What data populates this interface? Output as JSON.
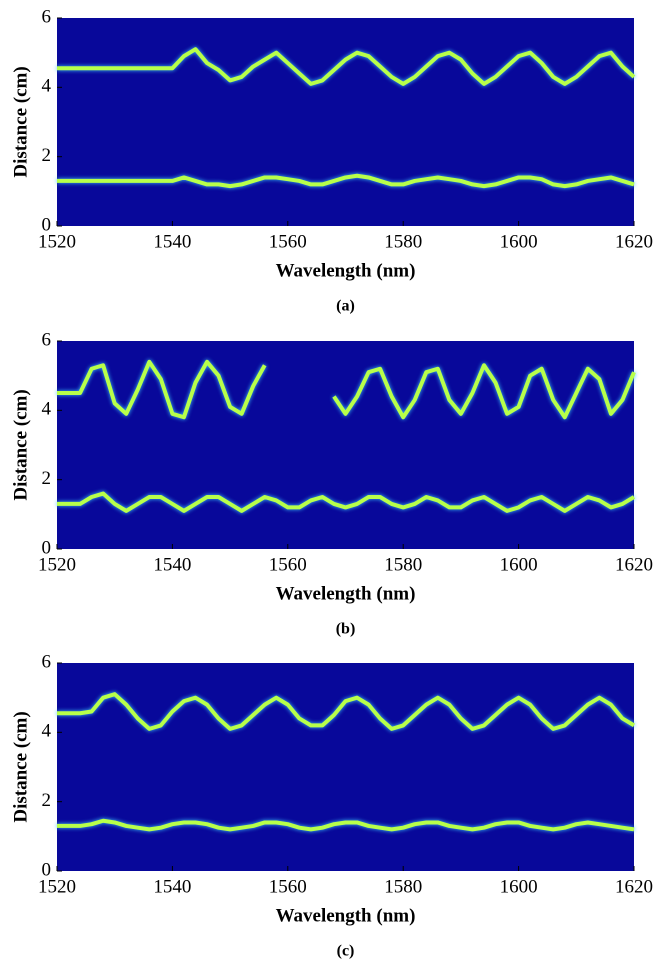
{
  "chart_data": [
    {
      "type": "line",
      "caption": "(a)",
      "xlabel": "Wavelength (nm)",
      "ylabel": "Distance (cm)",
      "xlim": [
        1520,
        1620
      ],
      "ylim": [
        0,
        6
      ],
      "xticks": [
        1520,
        1540,
        1560,
        1580,
        1600,
        1620
      ],
      "yticks": [
        0,
        2,
        4,
        6
      ],
      "background": "#08089a",
      "x": [
        1520,
        1522,
        1524,
        1526,
        1528,
        1530,
        1532,
        1534,
        1536,
        1538,
        1540,
        1542,
        1544,
        1546,
        1548,
        1550,
        1552,
        1554,
        1556,
        1558,
        1560,
        1562,
        1564,
        1566,
        1568,
        1570,
        1572,
        1574,
        1576,
        1578,
        1580,
        1582,
        1584,
        1586,
        1588,
        1590,
        1592,
        1594,
        1596,
        1598,
        1600,
        1602,
        1604,
        1606,
        1608,
        1610,
        1612,
        1614,
        1616,
        1618,
        1620
      ],
      "series": [
        {
          "color": "#b8ff4a",
          "values": [
            4.55,
            4.55,
            4.55,
            4.55,
            4.55,
            4.55,
            4.55,
            4.55,
            4.55,
            4.55,
            4.55,
            4.9,
            5.1,
            4.7,
            4.5,
            4.2,
            4.3,
            4.6,
            4.8,
            5.0,
            4.7,
            4.4,
            4.1,
            4.2,
            4.5,
            4.8,
            5.0,
            4.9,
            4.6,
            4.3,
            4.1,
            4.3,
            4.6,
            4.9,
            5.0,
            4.8,
            4.4,
            4.1,
            4.3,
            4.6,
            4.9,
            5.0,
            4.7,
            4.3,
            4.1,
            4.3,
            4.6,
            4.9,
            5.0,
            4.6,
            4.3
          ]
        },
        {
          "color": "#b8ff4a",
          "values": [
            1.3,
            1.3,
            1.3,
            1.3,
            1.3,
            1.3,
            1.3,
            1.3,
            1.3,
            1.3,
            1.3,
            1.4,
            1.3,
            1.2,
            1.2,
            1.15,
            1.2,
            1.3,
            1.4,
            1.4,
            1.35,
            1.3,
            1.2,
            1.2,
            1.3,
            1.4,
            1.45,
            1.4,
            1.3,
            1.2,
            1.2,
            1.3,
            1.35,
            1.4,
            1.35,
            1.3,
            1.2,
            1.15,
            1.2,
            1.3,
            1.4,
            1.4,
            1.35,
            1.2,
            1.15,
            1.2,
            1.3,
            1.35,
            1.4,
            1.3,
            1.2
          ]
        }
      ]
    },
    {
      "type": "line",
      "caption": "(b)",
      "xlabel": "Wavelength (nm)",
      "ylabel": "Distance (cm)",
      "xlim": [
        1520,
        1620
      ],
      "ylim": [
        0,
        6
      ],
      "xticks": [
        1520,
        1540,
        1560,
        1580,
        1600,
        1620
      ],
      "yticks": [
        0,
        2,
        4,
        6
      ],
      "background": "#08089a",
      "x": [
        1520,
        1522,
        1524,
        1526,
        1528,
        1530,
        1532,
        1534,
        1536,
        1538,
        1540,
        1542,
        1544,
        1546,
        1548,
        1550,
        1552,
        1554,
        1556,
        1558,
        1560,
        1562,
        1564,
        1566,
        1568,
        1570,
        1572,
        1574,
        1576,
        1578,
        1580,
        1582,
        1584,
        1586,
        1588,
        1590,
        1592,
        1594,
        1596,
        1598,
        1600,
        1602,
        1604,
        1606,
        1608,
        1610,
        1612,
        1614,
        1616,
        1618,
        1620
      ],
      "series": [
        {
          "color": "#b8ff4a",
          "values": [
            4.5,
            4.5,
            4.5,
            5.2,
            5.3,
            4.2,
            3.9,
            4.6,
            5.4,
            4.9,
            3.9,
            3.8,
            4.8,
            5.4,
            5.0,
            4.1,
            3.9,
            4.7,
            5.3,
            null,
            null,
            null,
            null,
            null,
            4.4,
            3.9,
            4.4,
            5.1,
            5.2,
            4.4,
            3.8,
            4.3,
            5.1,
            5.2,
            4.3,
            3.9,
            4.5,
            5.3,
            4.8,
            3.9,
            4.1,
            5.0,
            5.2,
            4.3,
            3.8,
            4.5,
            5.2,
            4.9,
            3.9,
            4.3,
            5.1
          ]
        },
        {
          "color": "#b8ff4a",
          "values": [
            1.3,
            1.3,
            1.3,
            1.5,
            1.6,
            1.3,
            1.1,
            1.3,
            1.5,
            1.5,
            1.3,
            1.1,
            1.3,
            1.5,
            1.5,
            1.3,
            1.1,
            1.3,
            1.5,
            1.4,
            1.2,
            1.2,
            1.4,
            1.5,
            1.3,
            1.2,
            1.3,
            1.5,
            1.5,
            1.3,
            1.2,
            1.3,
            1.5,
            1.4,
            1.2,
            1.2,
            1.4,
            1.5,
            1.3,
            1.1,
            1.2,
            1.4,
            1.5,
            1.3,
            1.1,
            1.3,
            1.5,
            1.4,
            1.2,
            1.3,
            1.5
          ]
        }
      ]
    },
    {
      "type": "line",
      "caption": "(c)",
      "xlabel": "Wavelength (nm)",
      "ylabel": "Distance (cm)",
      "xlim": [
        1520,
        1620
      ],
      "ylim": [
        0,
        6
      ],
      "xticks": [
        1520,
        1540,
        1560,
        1580,
        1600,
        1620
      ],
      "yticks": [
        0,
        2,
        4,
        6
      ],
      "background": "#08089a",
      "x": [
        1520,
        1522,
        1524,
        1526,
        1528,
        1530,
        1532,
        1534,
        1536,
        1538,
        1540,
        1542,
        1544,
        1546,
        1548,
        1550,
        1552,
        1554,
        1556,
        1558,
        1560,
        1562,
        1564,
        1566,
        1568,
        1570,
        1572,
        1574,
        1576,
        1578,
        1580,
        1582,
        1584,
        1586,
        1588,
        1590,
        1592,
        1594,
        1596,
        1598,
        1600,
        1602,
        1604,
        1606,
        1608,
        1610,
        1612,
        1614,
        1616,
        1618,
        1620
      ],
      "series": [
        {
          "color": "#b8ff4a",
          "values": [
            4.55,
            4.55,
            4.55,
            4.6,
            5.0,
            5.1,
            4.8,
            4.4,
            4.1,
            4.2,
            4.6,
            4.9,
            5.0,
            4.8,
            4.4,
            4.1,
            4.2,
            4.5,
            4.8,
            5.0,
            4.8,
            4.4,
            4.2,
            4.2,
            4.5,
            4.9,
            5.0,
            4.8,
            4.4,
            4.1,
            4.2,
            4.5,
            4.8,
            5.0,
            4.8,
            4.4,
            4.1,
            4.2,
            4.5,
            4.8,
            5.0,
            4.8,
            4.4,
            4.1,
            4.2,
            4.5,
            4.8,
            5.0,
            4.8,
            4.4,
            4.2
          ]
        },
        {
          "color": "#b8ff4a",
          "values": [
            1.3,
            1.3,
            1.3,
            1.35,
            1.45,
            1.4,
            1.3,
            1.25,
            1.2,
            1.25,
            1.35,
            1.4,
            1.4,
            1.35,
            1.25,
            1.2,
            1.25,
            1.3,
            1.4,
            1.4,
            1.35,
            1.25,
            1.2,
            1.25,
            1.35,
            1.4,
            1.4,
            1.3,
            1.25,
            1.2,
            1.25,
            1.35,
            1.4,
            1.4,
            1.3,
            1.25,
            1.2,
            1.25,
            1.35,
            1.4,
            1.4,
            1.3,
            1.25,
            1.2,
            1.25,
            1.35,
            1.4,
            1.35,
            1.3,
            1.25,
            1.2
          ]
        }
      ]
    }
  ]
}
